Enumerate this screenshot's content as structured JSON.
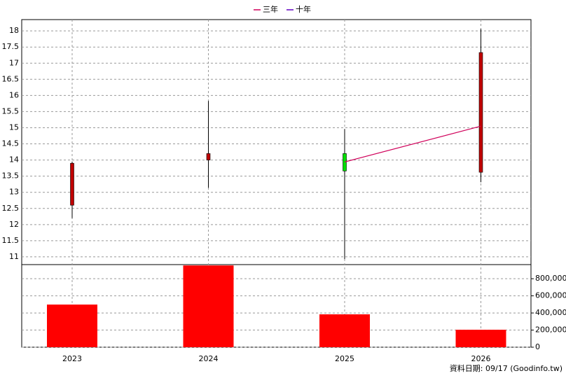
{
  "chart_data": {
    "type": "candlestick",
    "categories": [
      "2023",
      "2024",
      "2025",
      "2026"
    ],
    "open": [
      12.6,
      14.0,
      14.2,
      13.62
    ],
    "high": [
      13.95,
      15.83,
      14.96,
      18.06
    ],
    "low": [
      12.2,
      13.14,
      10.93,
      13.31
    ],
    "close": [
      13.9,
      14.2,
      13.66,
      17.33
    ],
    "up_color": "#c00000",
    "down_color": "#00e000",
    "series": [
      {
        "name": "三年",
        "color": "#d0005a",
        "values": [
          null,
          null,
          13.94,
          15.05
        ]
      },
      {
        "name": "十年",
        "color": "#6000c0",
        "values": [
          null,
          null,
          null,
          null
        ]
      }
    ],
    "ylim": [
      10.76,
      18.35
    ],
    "yticks": [
      11,
      11.5,
      12,
      12.5,
      13,
      13.5,
      14,
      14.5,
      15,
      15.5,
      16,
      16.5,
      17,
      17.5,
      18
    ],
    "grid": true,
    "volume": {
      "values": [
        498000,
        955000,
        384000,
        204000
      ],
      "color": "#ff0000",
      "ylim": [
        0,
        965000
      ],
      "yticks": [
        0,
        {
          "value": 200000,
          "label": "200,000"
        },
        {
          "value": 400000,
          "label": "400,000"
        },
        {
          "value": 600000,
          "label": "600,000"
        },
        {
          "value": 800000,
          "label": "800,000"
        }
      ]
    },
    "footer": "資料日期: 09/17  (Goodinfo.tw)"
  }
}
